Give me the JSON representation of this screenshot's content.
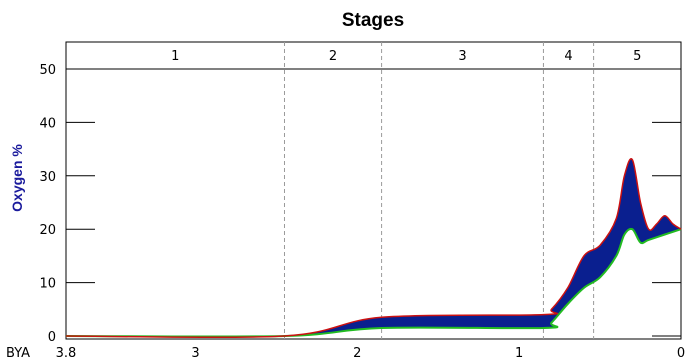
{
  "chart_data": {
    "type": "area",
    "title": "Stages",
    "ylabel": "Oxygen %",
    "x_unit_label": "BYA",
    "x_ticks": [
      {
        "value": 3.8,
        "label": "3.8"
      },
      {
        "value": 3,
        "label": "3"
      },
      {
        "value": 2,
        "label": "2"
      },
      {
        "value": 1,
        "label": "1"
      },
      {
        "value": 0,
        "label": "0"
      }
    ],
    "y_ticks": [
      0,
      10,
      20,
      30,
      40,
      50
    ],
    "xlim": [
      3.8,
      0
    ],
    "ylim": [
      0,
      55
    ],
    "stages": [
      {
        "label": "1",
        "start": 3.8,
        "end": 2.45
      },
      {
        "label": "2",
        "start": 2.45,
        "end": 1.85
      },
      {
        "label": "3",
        "start": 1.85,
        "end": 0.85
      },
      {
        "label": "4",
        "start": 0.85,
        "end": 0.54
      },
      {
        "label": "5",
        "start": 0.54,
        "end": 0
      }
    ],
    "series": [
      {
        "role": "upper",
        "color": "#cc1111",
        "x": [
          3.8,
          2.45,
          1.85,
          0.85,
          0.8,
          0.7,
          0.6,
          0.5,
          0.4,
          0.35,
          0.3,
          0.25,
          0.2,
          0.15,
          0.1,
          0.05,
          0
        ],
        "y": [
          0,
          0,
          3.5,
          4,
          5,
          9,
          15,
          17,
          22,
          30,
          33,
          25,
          20,
          21,
          22.5,
          21,
          20
        ]
      },
      {
        "role": "lower",
        "color": "#22bb22",
        "x": [
          3.8,
          2.45,
          1.85,
          0.85,
          0.8,
          0.7,
          0.6,
          0.5,
          0.4,
          0.35,
          0.3,
          0.25,
          0.2,
          0.1,
          0
        ],
        "y": [
          0,
          0,
          1.5,
          1.5,
          2.5,
          6,
          9,
          11,
          15,
          19,
          20,
          17.5,
          18,
          19,
          20
        ]
      }
    ],
    "fill_color": "#0a1f8f",
    "grid": false
  }
}
